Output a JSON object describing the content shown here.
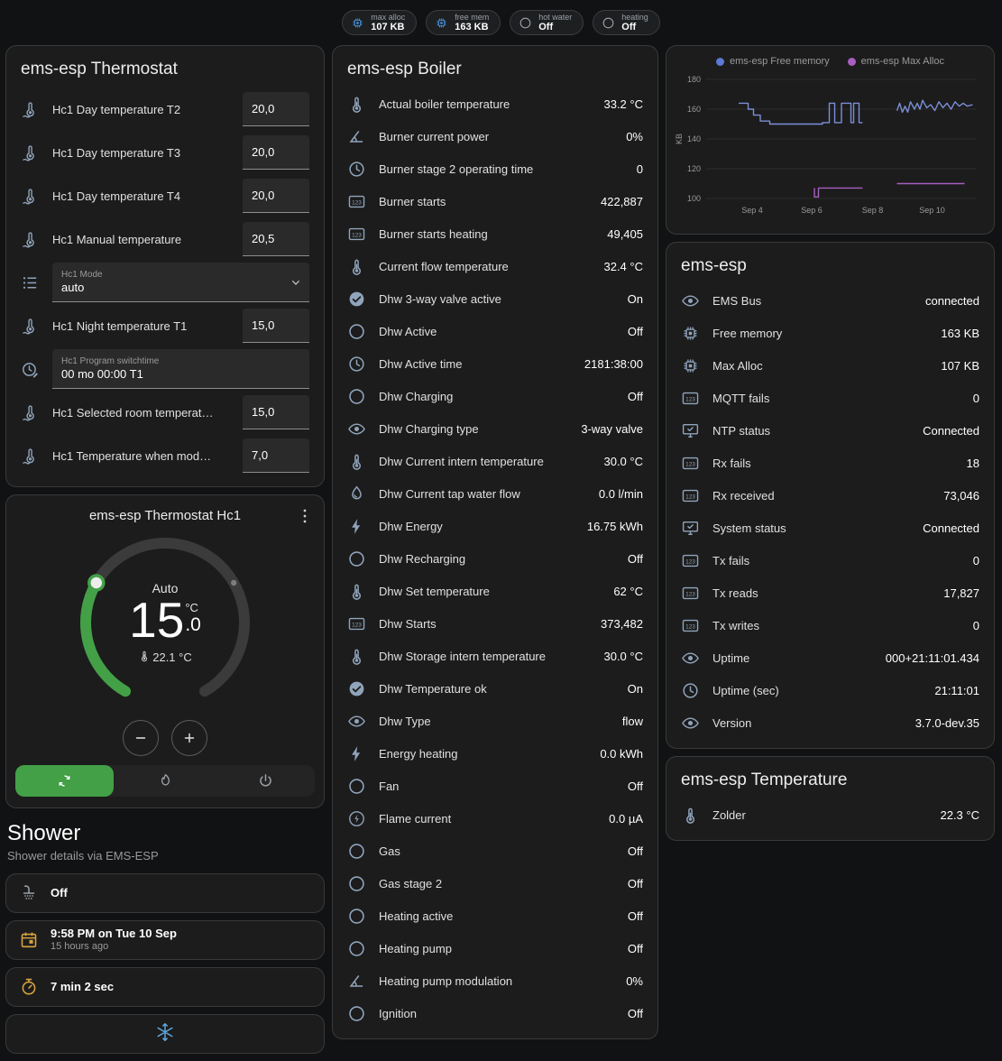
{
  "chips": [
    {
      "icon": "memory",
      "icon_color": "#4a90d9",
      "label": "max alloc",
      "value": "107 KB"
    },
    {
      "icon": "memory",
      "icon_color": "#4a90d9",
      "label": "free mem",
      "value": "163 KB"
    },
    {
      "icon": "circle",
      "icon_color": "#9aa0a6",
      "label": "hot water",
      "value": "Off"
    },
    {
      "icon": "circle",
      "icon_color": "#9aa0a6",
      "label": "heating",
      "value": "Off"
    }
  ],
  "thermostat_card": {
    "title": "ems-esp Thermostat",
    "rows": [
      {
        "type": "number",
        "icon": "thermometer-water",
        "label": "Hc1 Day temperature T2",
        "value": "20,0"
      },
      {
        "type": "number",
        "icon": "thermometer-water",
        "label": "Hc1 Day temperature T3",
        "value": "20,0"
      },
      {
        "type": "number",
        "icon": "thermometer-water",
        "label": "Hc1 Day temperature T4",
        "value": "20,0"
      },
      {
        "type": "number",
        "icon": "thermometer-water",
        "label": "Hc1 Manual temperature",
        "value": "20,5"
      },
      {
        "type": "select",
        "icon": "list",
        "label": "Hc1 Mode",
        "value": "auto"
      },
      {
        "type": "number",
        "icon": "thermometer-water",
        "label": "Hc1 Night temperature T1",
        "value": "15,0"
      },
      {
        "type": "text",
        "icon": "clock-edit",
        "label": "Hc1 Program switchtime",
        "value": "00 mo 00:00 T1"
      },
      {
        "type": "number",
        "icon": "thermometer-water",
        "label": "Hc1 Selected room temperat…",
        "value": "15,0"
      },
      {
        "type": "number",
        "icon": "thermometer-water",
        "label": "Hc1 Temperature when mod…",
        "value": "7,0"
      }
    ]
  },
  "dial_card": {
    "title": "ems-esp Thermostat Hc1",
    "mode": "Auto",
    "target_int": "15",
    "target_dec": ".0",
    "unit": "°C",
    "current": "22.1 °C",
    "accent": "#43a047",
    "modes": [
      {
        "icon": "autorenew",
        "active": true
      },
      {
        "icon": "fire",
        "active": false
      },
      {
        "icon": "power",
        "active": false
      }
    ]
  },
  "shower": {
    "title": "Shower",
    "subtitle": "Shower details via EMS-ESP",
    "cards": [
      {
        "icon": "shower",
        "icon_color": "#9aa0a6",
        "primary": "Off",
        "secondary": "",
        "layout": "row"
      },
      {
        "icon": "calendar",
        "icon_color": "#d9a43e",
        "primary": "9:58 PM on Tue 10 Sep",
        "secondary": "15 hours ago",
        "layout": "row"
      },
      {
        "icon": "timer",
        "icon_color": "#d9a43e",
        "primary": "7 min 2 sec",
        "secondary": "",
        "layout": "row"
      },
      {
        "icon": "snowflake",
        "icon_color": "#5fa8dc",
        "primary": "",
        "secondary": "",
        "layout": "icon-only"
      }
    ]
  },
  "boiler_card": {
    "title": "ems-esp Boiler",
    "rows": [
      {
        "icon": "thermometer",
        "label": "Actual boiler temperature",
        "value": "33.2 °C"
      },
      {
        "icon": "angle",
        "label": "Burner current power",
        "value": "0%"
      },
      {
        "icon": "clock",
        "label": "Burner stage 2 operating time",
        "value": "0"
      },
      {
        "icon": "counter",
        "label": "Burner starts",
        "value": "422,887"
      },
      {
        "icon": "counter",
        "label": "Burner starts heating",
        "value": "49,405"
      },
      {
        "icon": "thermometer",
        "label": "Current flow temperature",
        "value": "32.4 °C"
      },
      {
        "icon": "check-circle",
        "label": "Dhw 3-way valve active",
        "value": "On"
      },
      {
        "icon": "circle",
        "label": "Dhw Active",
        "value": "Off"
      },
      {
        "icon": "clock",
        "label": "Dhw Active time",
        "value": "2181:38:00"
      },
      {
        "icon": "circle",
        "label": "Dhw Charging",
        "value": "Off"
      },
      {
        "icon": "eye",
        "label": "Dhw Charging type",
        "value": "3-way valve"
      },
      {
        "icon": "thermometer",
        "label": "Dhw Current intern temperature",
        "value": "30.0 °C"
      },
      {
        "icon": "water-pump",
        "label": "Dhw Current tap water flow",
        "value": "0.0 l/min"
      },
      {
        "icon": "flash",
        "label": "Dhw Energy",
        "value": "16.75 kWh"
      },
      {
        "icon": "circle",
        "label": "Dhw Recharging",
        "value": "Off"
      },
      {
        "icon": "thermometer",
        "label": "Dhw Set temperature",
        "value": "62 °C"
      },
      {
        "icon": "counter",
        "label": "Dhw Starts",
        "value": "373,482"
      },
      {
        "icon": "thermometer",
        "label": "Dhw Storage intern temperature",
        "value": "30.0 °C"
      },
      {
        "icon": "check-circle",
        "label": "Dhw Temperature ok",
        "value": "On"
      },
      {
        "icon": "eye",
        "label": "Dhw Type",
        "value": "flow"
      },
      {
        "icon": "flash",
        "label": "Energy heating",
        "value": "0.0 kWh"
      },
      {
        "icon": "circle",
        "label": "Fan",
        "value": "Off"
      },
      {
        "icon": "flash-circle",
        "label": "Flame current",
        "value": "0.0 µA"
      },
      {
        "icon": "circle",
        "label": "Gas",
        "value": "Off"
      },
      {
        "icon": "circle",
        "label": "Gas stage 2",
        "value": "Off"
      },
      {
        "icon": "circle",
        "label": "Heating active",
        "value": "Off"
      },
      {
        "icon": "circle",
        "label": "Heating pump",
        "value": "Off"
      },
      {
        "icon": "angle",
        "label": "Heating pump modulation",
        "value": "0%"
      },
      {
        "icon": "circle",
        "label": "Ignition",
        "value": "Off"
      }
    ]
  },
  "system_card": {
    "title": "ems-esp",
    "rows": [
      {
        "icon": "eye",
        "label": "EMS Bus",
        "value": "connected"
      },
      {
        "icon": "memory",
        "label": "Free memory",
        "value": "163 KB"
      },
      {
        "icon": "memory",
        "label": "Max Alloc",
        "value": "107 KB"
      },
      {
        "icon": "counter",
        "label": "MQTT fails",
        "value": "0"
      },
      {
        "icon": "monitor-check",
        "label": "NTP status",
        "value": "Connected"
      },
      {
        "icon": "counter",
        "label": "Rx fails",
        "value": "18"
      },
      {
        "icon": "counter",
        "label": "Rx received",
        "value": "73,046"
      },
      {
        "icon": "monitor-check",
        "label": "System status",
        "value": "Connected"
      },
      {
        "icon": "counter",
        "label": "Tx fails",
        "value": "0"
      },
      {
        "icon": "counter",
        "label": "Tx reads",
        "value": "17,827"
      },
      {
        "icon": "counter",
        "label": "Tx writes",
        "value": "0"
      },
      {
        "icon": "eye",
        "label": "Uptime",
        "value": "000+21:11:01.434"
      },
      {
        "icon": "clock",
        "label": "Uptime (sec)",
        "value": "21:11:01"
      },
      {
        "icon": "eye",
        "label": "Version",
        "value": "3.7.0-dev.35"
      }
    ]
  },
  "temperature_card": {
    "title": "ems-esp Temperature",
    "rows": [
      {
        "icon": "thermometer",
        "label": "Zolder",
        "value": "22.3 °C"
      }
    ]
  },
  "chart_data": {
    "type": "line",
    "ylabel": "KB",
    "ylim": [
      100,
      180
    ],
    "yticks": [
      100,
      120,
      140,
      160,
      180
    ],
    "xticks": [
      {
        "label": "Sep 4",
        "x": 0.17
      },
      {
        "label": "Sep 6",
        "x": 0.39
      },
      {
        "label": "Sep 8",
        "x": 0.615
      },
      {
        "label": "Sep 10",
        "x": 0.835
      }
    ],
    "legend_position": "top",
    "grid": true,
    "legend": [
      {
        "name": "ems-esp Free memory",
        "color": "#5c79d4"
      },
      {
        "name": "ems-esp Max Alloc",
        "color": "#a85fc0"
      }
    ],
    "series": [
      {
        "name": "ems-esp Free memory",
        "color": "#7b8fd8",
        "segments": [
          [
            [
              0.12,
              164
            ],
            [
              0.155,
              164
            ],
            [
              0.155,
              160
            ],
            [
              0.175,
              160
            ],
            [
              0.175,
              156
            ],
            [
              0.2,
              156
            ],
            [
              0.2,
              152
            ],
            [
              0.235,
              152
            ],
            [
              0.235,
              150
            ],
            [
              0.43,
              150
            ],
            [
              0.43,
              151
            ],
            [
              0.455,
              151
            ],
            [
              0.455,
              164
            ],
            [
              0.475,
              164
            ],
            [
              0.475,
              151
            ],
            [
              0.5,
              151
            ],
            [
              0.5,
              164
            ],
            [
              0.535,
              164
            ],
            [
              0.535,
              151
            ],
            [
              0.545,
              151
            ],
            [
              0.545,
              164
            ],
            [
              0.565,
              164
            ],
            [
              0.565,
              151
            ],
            [
              0.578,
              151
            ]
          ],
          [
            [
              0.705,
              159
            ],
            [
              0.715,
              164
            ],
            [
              0.725,
              158
            ],
            [
              0.735,
              162
            ],
            [
              0.745,
              158
            ],
            [
              0.755,
              165
            ],
            [
              0.77,
              160
            ],
            [
              0.78,
              164
            ],
            [
              0.79,
              160
            ],
            [
              0.8,
              166
            ],
            [
              0.815,
              161
            ],
            [
              0.83,
              163
            ],
            [
              0.845,
              159
            ],
            [
              0.86,
              165
            ],
            [
              0.875,
              161
            ],
            [
              0.89,
              164
            ],
            [
              0.905,
              160
            ],
            [
              0.92,
              165
            ],
            [
              0.935,
              162
            ],
            [
              0.95,
              164
            ],
            [
              0.965,
              162
            ],
            [
              0.985,
              163
            ]
          ]
        ]
      },
      {
        "name": "ems-esp Max Alloc",
        "color": "#a85fc0",
        "segments": [
          [
            [
              0.4,
              107
            ],
            [
              0.4,
              101
            ],
            [
              0.415,
              101
            ],
            [
              0.415,
              107
            ],
            [
              0.578,
              107
            ]
          ],
          [
            [
              0.705,
              110
            ],
            [
              0.955,
              110
            ]
          ]
        ]
      }
    ]
  }
}
